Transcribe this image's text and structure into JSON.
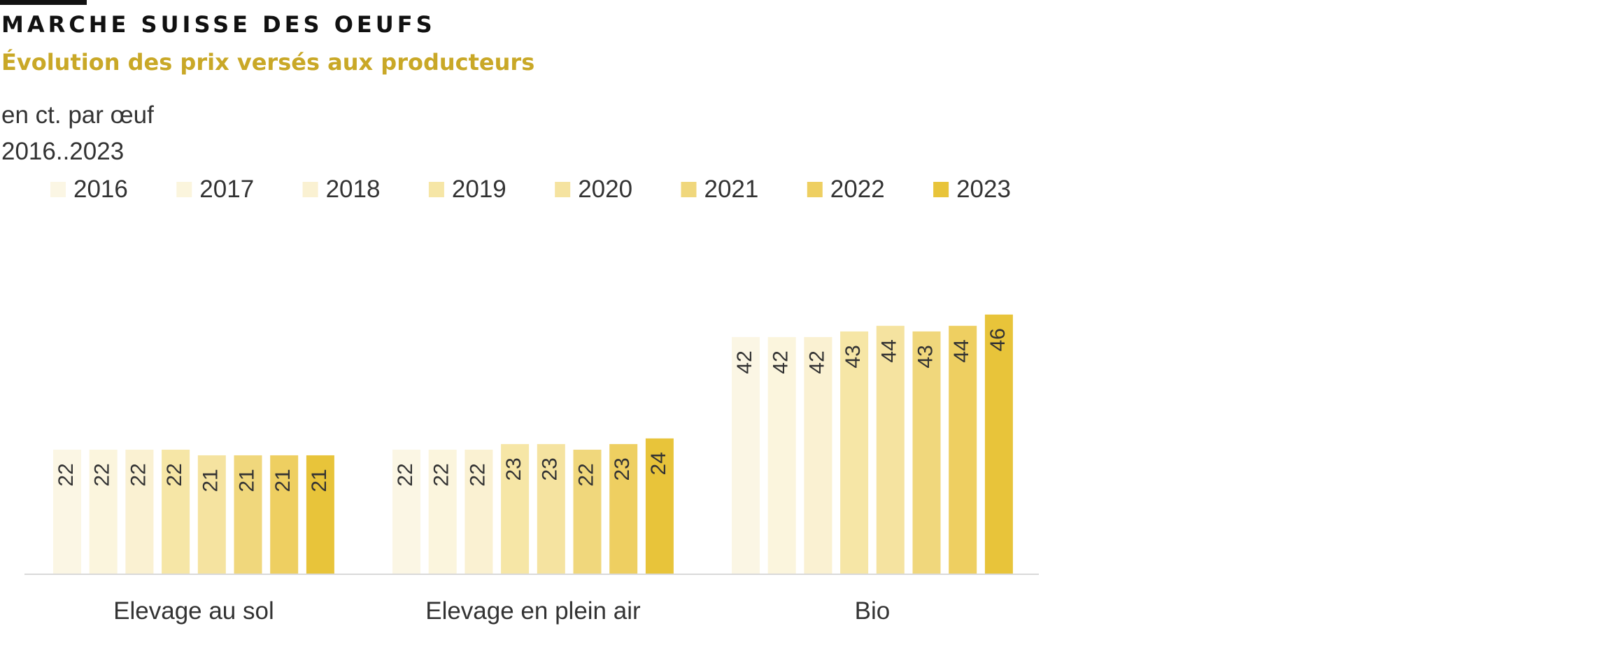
{
  "header": {
    "title": "MARCHE SUISSE DES OEUFS",
    "subtitle": "Évolution des prix versés aux producteurs",
    "unit": "en ct. par œuf",
    "range": "2016..2023"
  },
  "colors": {
    "title": "#111111",
    "subtitle": "#c9a827",
    "axis": "#d9d9d9",
    "series": [
      "#fbf6e4",
      "#fbf5dd",
      "#faf1d2",
      "#f6e6a6",
      "#f5e3a0",
      "#f0d77c",
      "#eecf61",
      "#e8c43a"
    ]
  },
  "chart_data": {
    "type": "bar",
    "categories": [
      "Elevage au sol",
      "Elevage en plein air",
      "Bio"
    ],
    "series": [
      {
        "name": "2016",
        "values": [
          22,
          22,
          42
        ]
      },
      {
        "name": "2017",
        "values": [
          22,
          22,
          42
        ]
      },
      {
        "name": "2018",
        "values": [
          22,
          22,
          42
        ]
      },
      {
        "name": "2019",
        "values": [
          22,
          23,
          43
        ]
      },
      {
        "name": "2020",
        "values": [
          21,
          23,
          44
        ]
      },
      {
        "name": "2021",
        "values": [
          21,
          22,
          43
        ]
      },
      {
        "name": "2022",
        "values": [
          21,
          23,
          44
        ]
      },
      {
        "name": "2023",
        "values": [
          21,
          24,
          46
        ]
      }
    ],
    "data_labels": true,
    "legend_position": "top",
    "grid": false,
    "ylim": [
      0,
      50
    ]
  }
}
